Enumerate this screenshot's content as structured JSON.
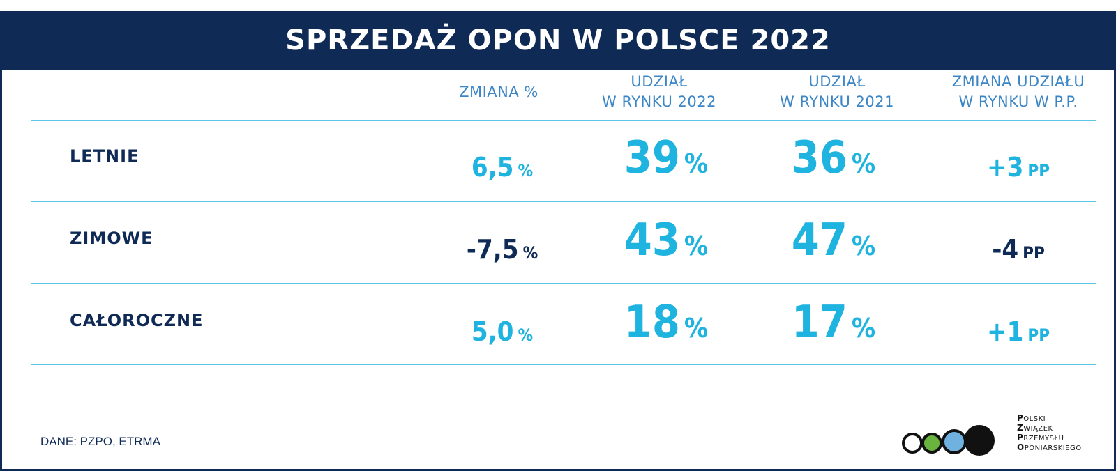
{
  "title": "SPRZEDAŻ OPON W POLSCE 2022",
  "columns": [
    {
      "line1": "ZMIANA %",
      "line2": ""
    },
    {
      "line1": "UDZIAŁ",
      "line2": "W RYNKU 2022"
    },
    {
      "line1": "UDZIAŁ",
      "line2": "W RYNKU 2021"
    },
    {
      "line1": "ZMIANA UDZIAŁU",
      "line2": "W RYNKU W P.P."
    }
  ],
  "units": {
    "pct": "%",
    "pp": "PP"
  },
  "chart_data": {
    "type": "table",
    "title": "SPRZEDAŻ OPON W POLSCE 2022",
    "columns": [
      "ZMIANA %",
      "UDZIAŁ W RYNKU 2022",
      "UDZIAŁ W RYNKU 2021",
      "ZMIANA UDZIAŁU W RYNKU W P.P."
    ],
    "rows": [
      {
        "label": "LETNIE",
        "change": "6,5",
        "share_2022": "39",
        "share_2021": "36",
        "share_change": "+3",
        "change_sign": "pos",
        "share_change_sign": "pos"
      },
      {
        "label": "ZIMOWE",
        "change": "-7,5",
        "share_2022": "43",
        "share_2021": "47",
        "share_change": "-4",
        "change_sign": "neg",
        "share_change_sign": "neg"
      },
      {
        "label": "CAŁOROCZNE",
        "change": "5,0",
        "share_2022": "18",
        "share_2021": "17",
        "share_change": "+1",
        "change_sign": "pos",
        "share_change_sign": "pos"
      }
    ]
  },
  "source": "DANE: PZPO, ETRMA",
  "logo": {
    "lines": [
      {
        "initial": "P",
        "rest": "OLSKI"
      },
      {
        "initial": "Z",
        "rest": "WIĄZEK"
      },
      {
        "initial": "P",
        "rest": "RZEMYSŁU"
      },
      {
        "initial": "O",
        "rest": "PONIARSKIEGO"
      }
    ],
    "circle_colors": [
      "#ffffff",
      "#6ab33e",
      "#6fb2e0",
      "#111111"
    ]
  },
  "colors": {
    "navy": "#0f2a55",
    "cyan": "#1fb3e0",
    "header_blue": "#3c86c6",
    "rule": "#5cc6e6"
  }
}
